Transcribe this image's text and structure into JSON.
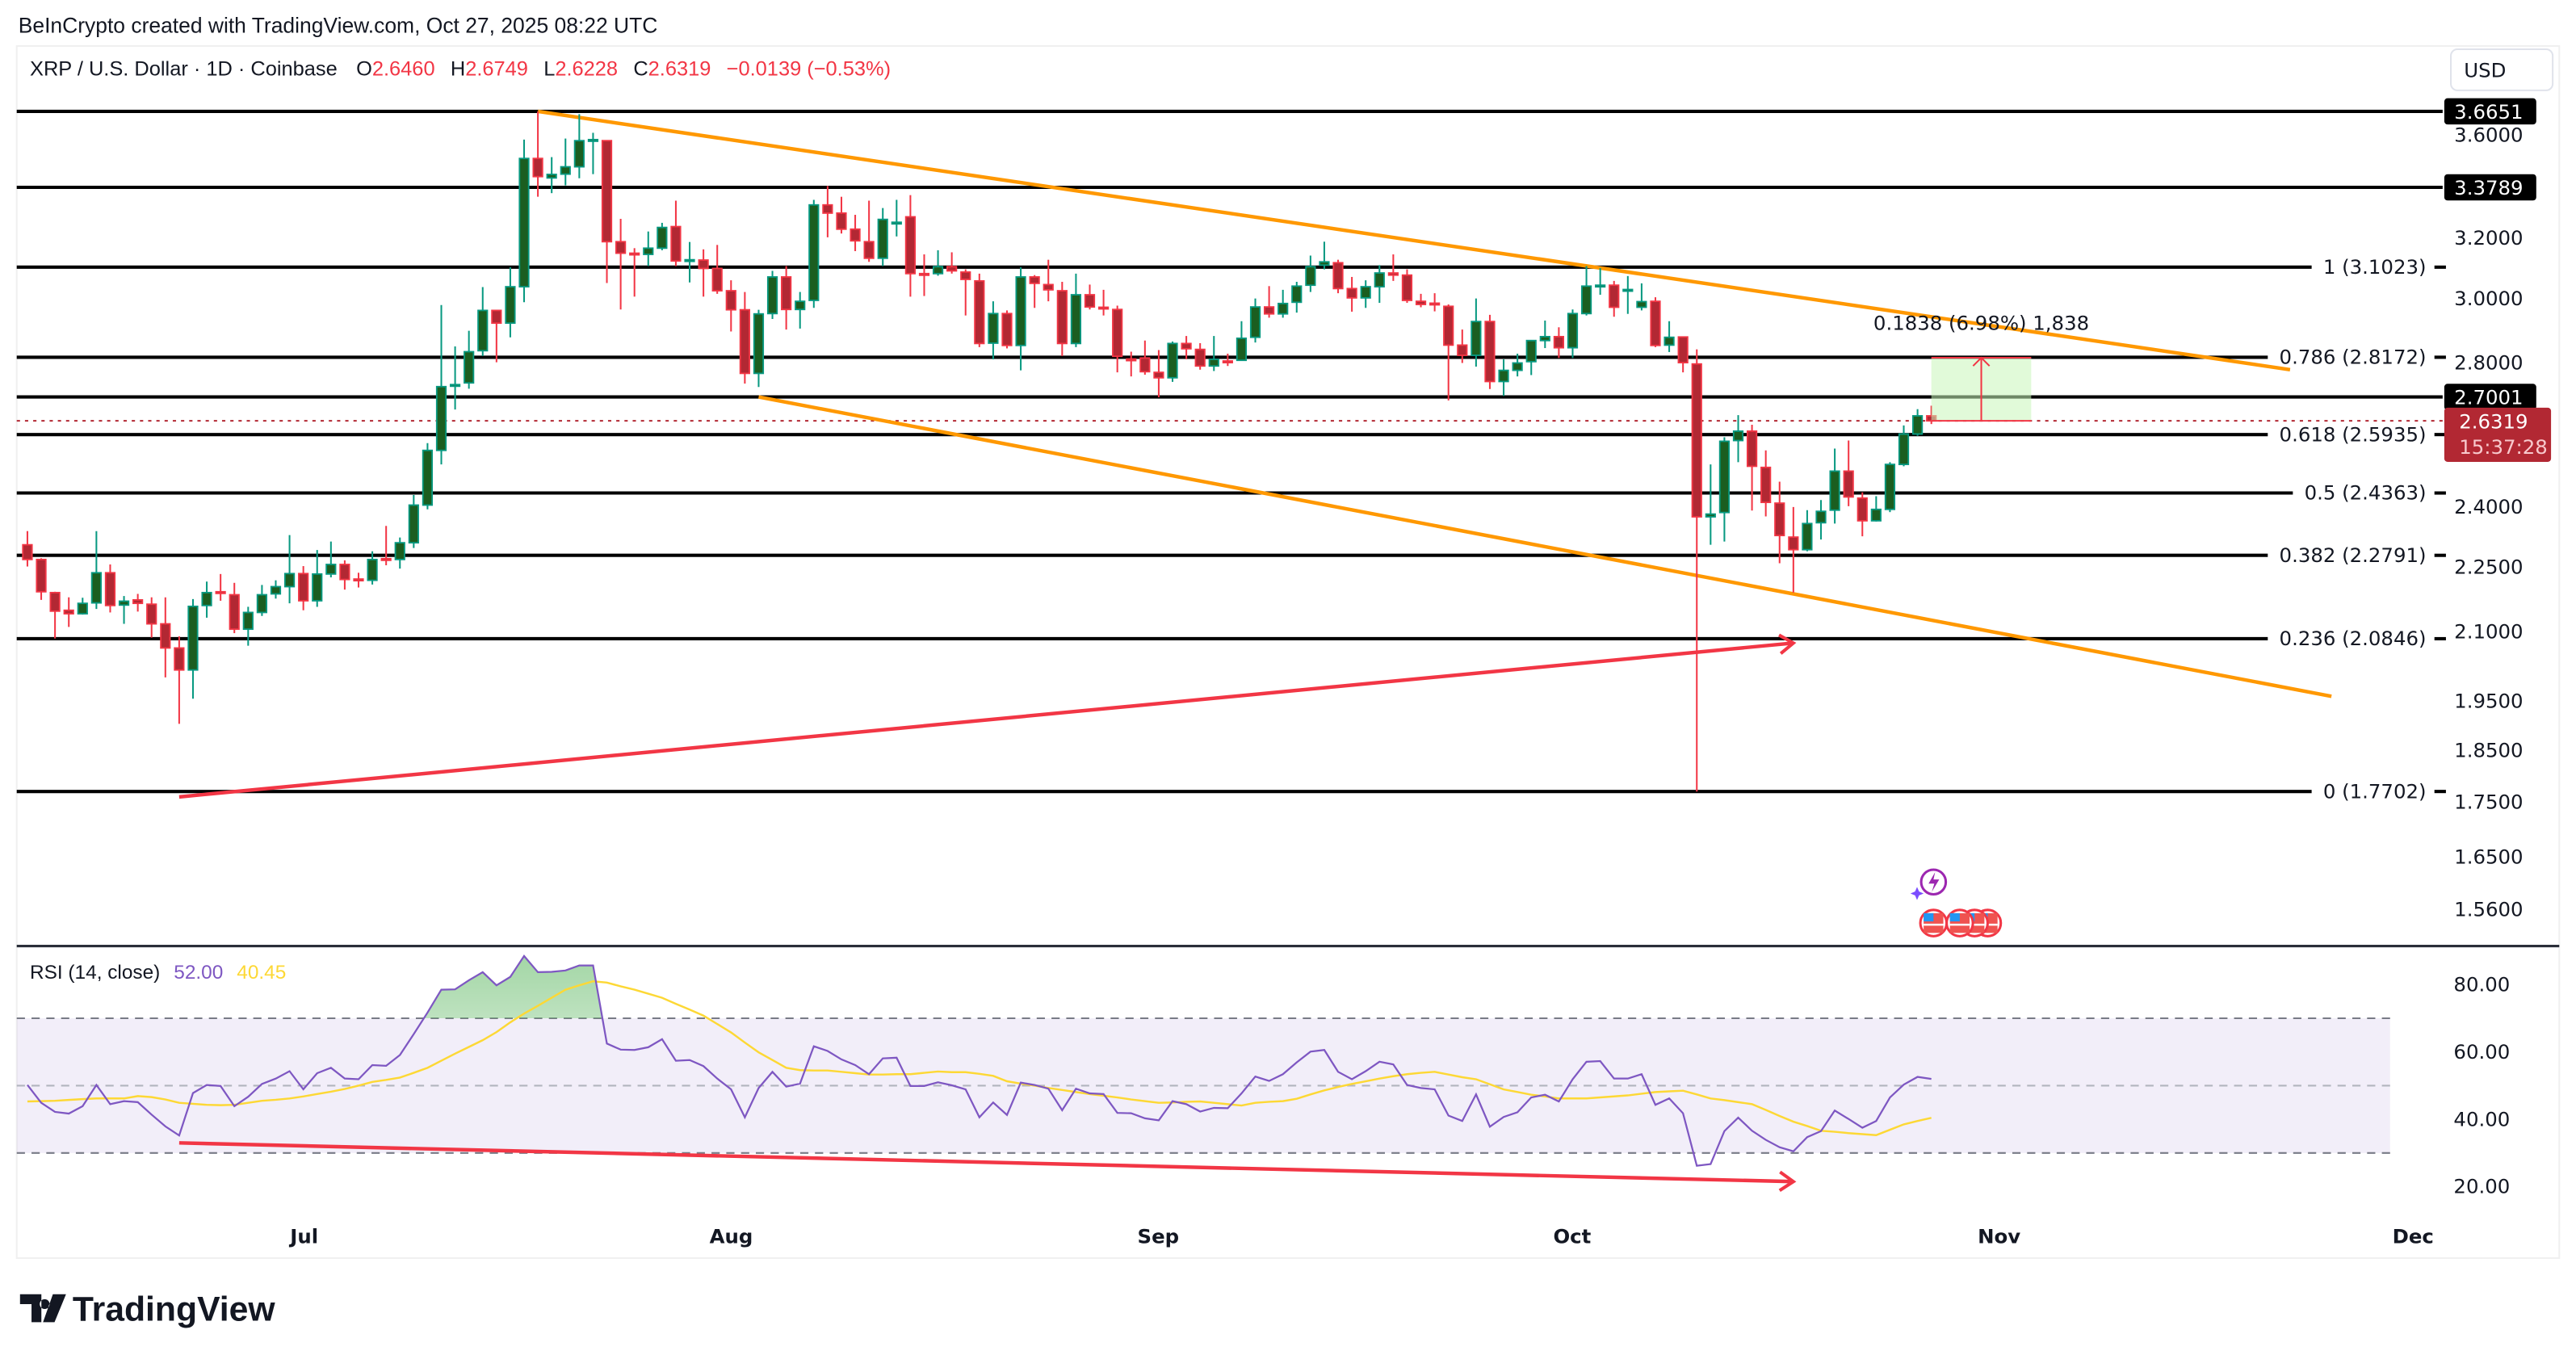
{
  "attribution": "BeInCrypto created with TradingView.com, Oct 27, 2025 08:22 UTC",
  "legend": {
    "symbol": "XRP / U.S. Dollar · 1D · Coinbase",
    "o_label": "O",
    "o": "2.6460",
    "h_label": "H",
    "h": "2.6749",
    "l_label": "L",
    "l": "2.6228",
    "c_label": "C",
    "c": "2.6319",
    "change": "−0.0139 (−0.53%)"
  },
  "currency_button": "USD",
  "colors": {
    "up_body": "#1b5e20",
    "up_border": "#089981",
    "down_body": "#b22833",
    "down_border": "#f23645",
    "trendline": "#ff9800",
    "divergence": "#f23645",
    "rsi": "#7e57c2",
    "rsi_ma": "#fdd835"
  },
  "chart_data": [
    {
      "type": "candlestick",
      "scale": "log",
      "ylim": [
        1.52,
        3.72
      ],
      "xlabels": [
        "Jul",
        "Aug",
        "Sep",
        "Oct",
        "Nov",
        "Dec"
      ],
      "ytick_labels": [
        "3.6000",
        "3.2000",
        "3.0000",
        "2.8000",
        "2.4000",
        "2.2500",
        "2.1000",
        "1.9500",
        "1.8500",
        "1.7500",
        "1.6500",
        "1.5600"
      ],
      "ohlc": [
        [
          2.305,
          2.339,
          2.252,
          2.269
        ],
        [
          2.269,
          2.272,
          2.173,
          2.192
        ],
        [
          2.19,
          2.192,
          2.085,
          2.147
        ],
        [
          2.149,
          2.179,
          2.111,
          2.141
        ],
        [
          2.141,
          2.178,
          2.139,
          2.165
        ],
        [
          2.166,
          2.339,
          2.152,
          2.237
        ],
        [
          2.237,
          2.257,
          2.144,
          2.16
        ],
        [
          2.161,
          2.182,
          2.118,
          2.17
        ],
        [
          2.173,
          2.187,
          2.146,
          2.165
        ],
        [
          2.163,
          2.179,
          2.087,
          2.118
        ],
        [
          2.118,
          2.179,
          2.0,
          2.064
        ],
        [
          2.064,
          2.09,
          1.903,
          2.016
        ],
        [
          2.016,
          2.175,
          1.955,
          2.158
        ],
        [
          2.16,
          2.216,
          2.132,
          2.19
        ],
        [
          2.192,
          2.234,
          2.171,
          2.19
        ],
        [
          2.185,
          2.213,
          2.097,
          2.106
        ],
        [
          2.106,
          2.157,
          2.069,
          2.144
        ],
        [
          2.144,
          2.208,
          2.136,
          2.185
        ],
        [
          2.187,
          2.219,
          2.176,
          2.204
        ],
        [
          2.204,
          2.329,
          2.165,
          2.235
        ],
        [
          2.235,
          2.253,
          2.149,
          2.171
        ],
        [
          2.171,
          2.292,
          2.157,
          2.234
        ],
        [
          2.234,
          2.313,
          2.226,
          2.257
        ],
        [
          2.257,
          2.267,
          2.197,
          2.221
        ],
        [
          2.222,
          2.237,
          2.202,
          2.22
        ],
        [
          2.219,
          2.289,
          2.209,
          2.269
        ],
        [
          2.271,
          2.352,
          2.255,
          2.269
        ],
        [
          2.269,
          2.323,
          2.247,
          2.31
        ],
        [
          2.31,
          2.431,
          2.297,
          2.405
        ],
        [
          2.405,
          2.57,
          2.394,
          2.55
        ],
        [
          2.55,
          2.979,
          2.512,
          2.73
        ],
        [
          2.734,
          2.85,
          2.664,
          2.736
        ],
        [
          2.741,
          2.898,
          2.724,
          2.834
        ],
        [
          2.837,
          3.037,
          2.821,
          2.962
        ],
        [
          2.962,
          2.962,
          2.802,
          2.922
        ],
        [
          2.922,
          3.102,
          2.878,
          3.038
        ],
        [
          3.038,
          3.556,
          2.988,
          3.485
        ],
        [
          3.485,
          3.665,
          3.345,
          3.418
        ],
        [
          3.413,
          3.49,
          3.358,
          3.426
        ],
        [
          3.427,
          3.56,
          3.386,
          3.454
        ],
        [
          3.454,
          3.654,
          3.412,
          3.552
        ],
        [
          3.553,
          3.582,
          3.427,
          3.556
        ],
        [
          3.552,
          3.552,
          3.05,
          3.188
        ],
        [
          3.188,
          3.267,
          2.965,
          3.149
        ],
        [
          3.149,
          3.166,
          3.006,
          3.147
        ],
        [
          3.145,
          3.223,
          3.106,
          3.166
        ],
        [
          3.166,
          3.253,
          3.159,
          3.237
        ],
        [
          3.24,
          3.331,
          3.106,
          3.123
        ],
        [
          3.125,
          3.187,
          3.052,
          3.127
        ],
        [
          3.126,
          3.162,
          3.006,
          3.098
        ],
        [
          3.098,
          3.177,
          3.015,
          3.025
        ],
        [
          3.025,
          3.059,
          2.896,
          2.964
        ],
        [
          2.964,
          3.021,
          2.739,
          2.769
        ],
        [
          2.769,
          2.964,
          2.729,
          2.951
        ],
        [
          2.952,
          3.09,
          2.935,
          3.07
        ],
        [
          3.07,
          3.106,
          2.902,
          2.965
        ],
        [
          2.965,
          3.021,
          2.905,
          2.991
        ],
        [
          2.994,
          3.334,
          2.97,
          3.316
        ],
        [
          3.316,
          3.384,
          3.203,
          3.287
        ],
        [
          3.287,
          3.345,
          3.216,
          3.231
        ],
        [
          3.231,
          3.281,
          3.156,
          3.191
        ],
        [
          3.188,
          3.331,
          3.12,
          3.132
        ],
        [
          3.132,
          3.305,
          3.106,
          3.265
        ],
        [
          3.253,
          3.334,
          3.206,
          3.255
        ],
        [
          3.274,
          3.351,
          3.006,
          3.081
        ],
        [
          3.081,
          3.145,
          3.008,
          3.079
        ],
        [
          3.081,
          3.159,
          3.074,
          3.104
        ],
        [
          3.104,
          3.152,
          3.081,
          3.09
        ],
        [
          3.086,
          3.095,
          2.946,
          3.062
        ],
        [
          3.057,
          3.081,
          2.848,
          2.859
        ],
        [
          2.86,
          2.991,
          2.811,
          2.952
        ],
        [
          2.952,
          2.962,
          2.844,
          2.853
        ],
        [
          2.853,
          3.102,
          2.778,
          3.07
        ],
        [
          3.07,
          3.076,
          2.97,
          3.049
        ],
        [
          3.045,
          3.127,
          2.991,
          3.028
        ],
        [
          3.025,
          3.054,
          2.821,
          2.859
        ],
        [
          2.859,
          3.081,
          2.848,
          3.012
        ],
        [
          3.012,
          3.045,
          2.965,
          2.973
        ],
        [
          2.972,
          3.028,
          2.946,
          2.97
        ],
        [
          2.965,
          2.977,
          2.772,
          2.82
        ],
        [
          2.812,
          2.834,
          2.76,
          2.81
        ],
        [
          2.815,
          2.868,
          2.765,
          2.774
        ],
        [
          2.772,
          2.839,
          2.699,
          2.756
        ],
        [
          2.756,
          2.865,
          2.744,
          2.859
        ],
        [
          2.859,
          2.882,
          2.811,
          2.843
        ],
        [
          2.841,
          2.86,
          2.78,
          2.791
        ],
        [
          2.791,
          2.882,
          2.776,
          2.811
        ],
        [
          2.806,
          2.828,
          2.791,
          2.804
        ],
        [
          2.808,
          2.928,
          2.807,
          2.875
        ],
        [
          2.878,
          3.0,
          2.862,
          2.973
        ],
        [
          2.973,
          3.04,
          2.939,
          2.951
        ],
        [
          2.951,
          3.028,
          2.939,
          2.984
        ],
        [
          2.988,
          3.054,
          2.955,
          3.04
        ],
        [
          3.043,
          3.141,
          3.021,
          3.104
        ],
        [
          3.109,
          3.188,
          3.095,
          3.12
        ],
        [
          3.117,
          3.127,
          3.017,
          3.032
        ],
        [
          3.032,
          3.07,
          2.958,
          3.002
        ],
        [
          3.002,
          3.059,
          2.97,
          3.038
        ],
        [
          3.038,
          3.109,
          2.986,
          3.083
        ],
        [
          3.083,
          3.145,
          3.057,
          3.076
        ],
        [
          3.076,
          3.095,
          2.986,
          2.994
        ],
        [
          2.991,
          3.015,
          2.972,
          2.981
        ],
        [
          2.985,
          3.017,
          2.959,
          2.983
        ],
        [
          2.975,
          2.981,
          2.69,
          2.854
        ],
        [
          2.854,
          2.902,
          2.8,
          2.823
        ],
        [
          2.823,
          3.0,
          2.789,
          2.927
        ],
        [
          2.927,
          2.948,
          2.723,
          2.745
        ],
        [
          2.745,
          2.811,
          2.703,
          2.778
        ],
        [
          2.778,
          2.828,
          2.76,
          2.8
        ],
        [
          2.804,
          2.868,
          2.764,
          2.868
        ],
        [
          2.868,
          2.93,
          2.845,
          2.88
        ],
        [
          2.88,
          2.909,
          2.815,
          2.846
        ],
        [
          2.846,
          2.965,
          2.815,
          2.952
        ],
        [
          2.952,
          3.106,
          2.946,
          3.04
        ],
        [
          3.041,
          3.099,
          3.012,
          3.043
        ],
        [
          3.043,
          3.057,
          2.942,
          2.972
        ],
        [
          3.027,
          3.073,
          2.951,
          3.029
        ],
        [
          2.972,
          3.049,
          2.962,
          2.99
        ],
        [
          2.991,
          3.004,
          2.848,
          2.853
        ],
        [
          2.854,
          2.928,
          2.833,
          2.878
        ],
        [
          2.879,
          2.88,
          2.772,
          2.801
        ],
        [
          2.797,
          2.841,
          1.77,
          2.375
        ],
        [
          2.375,
          2.512,
          2.305,
          2.382
        ],
        [
          2.386,
          2.586,
          2.313,
          2.575
        ],
        [
          2.577,
          2.648,
          2.518,
          2.603
        ],
        [
          2.603,
          2.621,
          2.391,
          2.507
        ],
        [
          2.504,
          2.55,
          2.376,
          2.412
        ],
        [
          2.41,
          2.466,
          2.26,
          2.328
        ],
        [
          2.324,
          2.4,
          2.19,
          2.293
        ],
        [
          2.293,
          2.392,
          2.289,
          2.358
        ],
        [
          2.36,
          2.418,
          2.318,
          2.389
        ],
        [
          2.392,
          2.555,
          2.358,
          2.494
        ],
        [
          2.494,
          2.577,
          2.402,
          2.426
        ],
        [
          2.423,
          2.438,
          2.326,
          2.365
        ],
        [
          2.365,
          2.428,
          2.363,
          2.394
        ],
        [
          2.394,
          2.518,
          2.387,
          2.512
        ],
        [
          2.512,
          2.619,
          2.507,
          2.595
        ],
        [
          2.595,
          2.665,
          2.59,
          2.646
        ],
        [
          2.646,
          2.6749,
          2.6228,
          2.6319
        ]
      ],
      "horizontal_levels": [
        {
          "price": 3.6651,
          "label": "3.6651"
        },
        {
          "price": 3.3789,
          "label": "3.3789"
        },
        {
          "price": 2.7001,
          "label": "2.7001"
        }
      ],
      "fib_levels": [
        {
          "price": 3.1023,
          "label": "1 (3.1023)"
        },
        {
          "price": 2.8172,
          "label": "0.786 (2.8172)"
        },
        {
          "price": 2.5935,
          "label": "0.618 (2.5935)"
        },
        {
          "price": 2.4363,
          "label": "0.5 (2.4363)"
        },
        {
          "price": 2.2791,
          "label": "0.382 (2.2791)"
        },
        {
          "price": 2.0846,
          "label": "0.236 (2.0846)"
        },
        {
          "price": 1.7702,
          "label": "0 (1.7702)"
        }
      ],
      "trendlines": [
        {
          "name": "upper-channel",
          "from": [
            37,
            3.665
          ],
          "to": [
            164,
            2.78
          ]
        },
        {
          "name": "lower-channel",
          "from": [
            53,
            2.7
          ],
          "to": [
            167,
            1.96
          ]
        },
        {
          "name": "price-higher-low",
          "from": [
            11,
            1.76
          ],
          "to": [
            128,
            2.075
          ],
          "arrow": true
        }
      ],
      "measure": {
        "from_price": 2.6319,
        "to_price": 2.8157,
        "label": "0.1838 (6.98%) 1,838"
      },
      "last_price": {
        "value": "2.6319",
        "countdown": "15:37:28"
      }
    },
    {
      "type": "line",
      "title": "RSI (14, close)",
      "rsi_value": "52.00",
      "ma_value": "40.45",
      "ylim": [
        10,
        90
      ],
      "bands": [
        30,
        50,
        70
      ],
      "ytick_labels": [
        "80.00",
        "60.00",
        "40.00",
        "20.00"
      ],
      "rsi": [
        50.2,
        44.9,
        42.2,
        41.7,
        43.9,
        50.2,
        44.5,
        45.4,
        45.1,
        41.4,
        37.9,
        35.2,
        47.8,
        50.2,
        49.9,
        43.9,
        46.7,
        50.5,
        52.1,
        54.3,
        48.9,
        53.7,
        55.3,
        52.1,
        51.9,
        56.1,
        55.9,
        59.1,
        65.3,
        71.7,
        78.5,
        78.6,
        81.3,
        83.7,
        79.8,
        82.3,
        88.5,
        83.7,
        83.8,
        84.2,
        85.7,
        85.7,
        62.5,
        60.7,
        60.6,
        61.4,
        63.8,
        57.4,
        57.6,
        55.8,
        52.1,
        48.9,
        40.6,
        49.3,
        54.1,
        49.7,
        50.6,
        61.7,
        60.3,
        57.8,
        56.1,
        53.4,
        58.1,
        58.3,
        49.9,
        49.9,
        51.0,
        50.1,
        48.9,
        40.6,
        45.0,
        41.3,
        50.9,
        50.2,
        49.1,
        42.7,
        49.1,
        47.7,
        47.5,
        41.9,
        41.8,
        40.3,
        39.7,
        45.4,
        44.5,
        42.3,
        43.4,
        43.3,
        47.7,
        52.7,
        51.4,
        53.4,
        56.9,
        60.1,
        60.6,
        54.1,
        51.9,
        54.3,
        57.1,
        56.3,
        50.2,
        49.3,
        48.9,
        41.1,
        39.5,
        47.4,
        37.8,
        40.7,
        42.1,
        46.5,
        47.3,
        45.3,
        51.9,
        57.1,
        57.3,
        52.1,
        52.1,
        53.4,
        44.3,
        46.2,
        41.8,
        26.2,
        26.7,
        36.5,
        40.5,
        36.6,
        33.9,
        31.7,
        30.5,
        34.7,
        36.5,
        42.6,
        40.1,
        37.5,
        39.5,
        46.5,
        50.3,
        52.6,
        52.0
      ],
      "rsi_ma": [
        45.3,
        45.4,
        45.5,
        45.75,
        46.0,
        46.2,
        46.2,
        46.2,
        46.9,
        46.6,
        45.9,
        44.9,
        44.6,
        44.3,
        44.2,
        44.3,
        44.9,
        45.5,
        45.8,
        46.2,
        46.8,
        47.5,
        48.2,
        49.0,
        50.0,
        51.1,
        51.7,
        52.4,
        53.8,
        55.3,
        57.4,
        59.5,
        61.5,
        63.5,
        65.9,
        68.8,
        71.4,
        73.7,
        76.1,
        78.5,
        79.8,
        81.0,
        80.6,
        79.5,
        78.5,
        77.3,
        76.1,
        74.3,
        72.6,
        70.8,
        68.3,
        65.8,
        62.8,
        59.9,
        57.6,
        55.3,
        54.6,
        54.5,
        54.5,
        54.1,
        53.7,
        53.3,
        53.3,
        53.4,
        53.4,
        53.8,
        54.2,
        54.0,
        54.0,
        53.5,
        52.9,
        51.3,
        50.6,
        50.0,
        49.3,
        48.7,
        48.1,
        47.5,
        47.0,
        46.5,
        45.9,
        45.4,
        44.9,
        45.0,
        45.2,
        45.3,
        44.9,
        44.5,
        44.1,
        44.9,
        45.2,
        45.4,
        46.1,
        47.4,
        48.6,
        49.6,
        50.5,
        51.3,
        52.1,
        52.8,
        53.4,
        53.8,
        54.1,
        53.3,
        52.5,
        51.9,
        50.4,
        48.9,
        48.1,
        47.3,
        46.8,
        46.2,
        46.2,
        46.2,
        46.5,
        46.8,
        47.1,
        47.6,
        48.1,
        48.3,
        48.5,
        47.4,
        46.2,
        45.7,
        45.1,
        44.5,
        42.8,
        41.0,
        39.3,
        38.0,
        36.6,
        36.3,
        35.9,
        35.6,
        35.3,
        36.9,
        38.5,
        39.5,
        40.45
      ],
      "divergence_line": {
        "from": [
          11,
          33.0
        ],
        "to": [
          128,
          21.5
        ],
        "arrow": true
      }
    }
  ],
  "branding": {
    "logo_text": "TradingView"
  }
}
